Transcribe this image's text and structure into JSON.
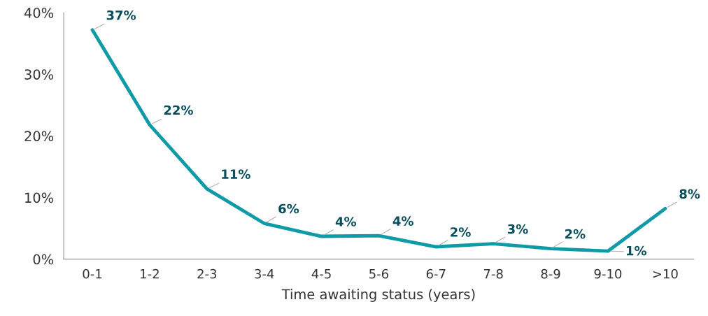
{
  "chart_data": {
    "type": "line",
    "xlabel": "Time awaiting status (years)",
    "categories": [
      "0-1",
      "1-2",
      "2-3",
      "3-4",
      "4-5",
      "5-6",
      "6-7",
      "7-8",
      "8-9",
      "9-10",
      ">10"
    ],
    "series": [
      {
        "color": "#0e9aa7",
        "values": [
          37.2,
          21.8,
          11.4,
          5.8,
          3.7,
          3.8,
          2.0,
          2.5,
          1.7,
          1.3,
          8.2
        ],
        "value_labels": [
          "37%",
          "22%",
          "11%",
          "6%",
          "4%",
          "4%",
          "2%",
          "3%",
          "2%",
          "1%",
          "8%"
        ]
      }
    ],
    "ylim": [
      0,
      40
    ],
    "yticks": [
      {
        "value": 0,
        "label": "0%"
      },
      {
        "value": 10,
        "label": "10%"
      },
      {
        "value": 20,
        "label": "20%"
      },
      {
        "value": 30,
        "label": "30%"
      },
      {
        "value": 40,
        "label": "40%"
      }
    ],
    "grid": false,
    "legend": false,
    "marker": "none",
    "line_style": "solid"
  }
}
